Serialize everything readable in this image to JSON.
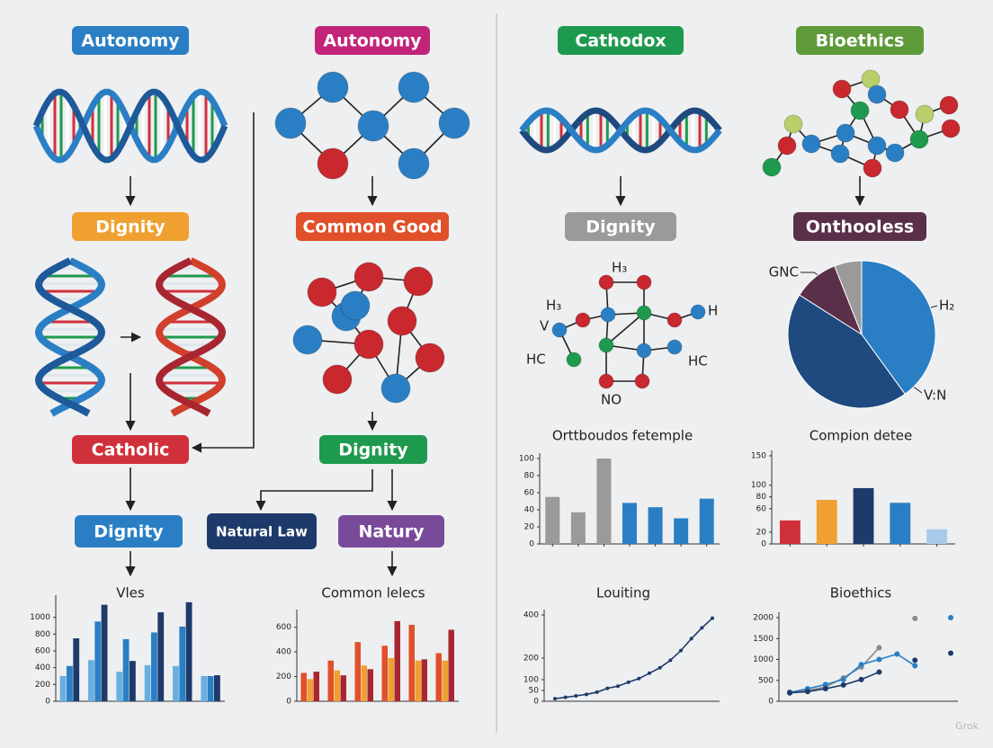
{
  "pills": [
    "Autonomy",
    "Autonomy",
    "Cathodox",
    "Bioethics",
    "Dignity",
    "Common Good",
    "Dignity",
    "Onthooless",
    "Catholic",
    "Dignity",
    "Dignity",
    "Natural Law",
    "Natury"
  ],
  "molecule_labels": [
    "H₃",
    "H₃",
    "V",
    "H",
    "HC",
    "HC",
    "NO"
  ],
  "watermark": "Grok",
  "chart_data": [
    {
      "type": "bar",
      "title": "Orttboudos fetemple",
      "categories": [
        null,
        null,
        null,
        null,
        null,
        null,
        null
      ],
      "values": [
        55,
        37,
        100,
        48,
        43,
        30,
        53
      ],
      "colors": [
        "#9a9a9a",
        "#9a9a9a",
        "#9a9a9a",
        "#2a7fc4",
        "#2a7fc4",
        "#2a7fc4",
        "#2a7fc4"
      ],
      "ylim": [
        0,
        100
      ],
      "yticks": [
        0,
        20,
        40,
        60,
        80,
        100
      ]
    },
    {
      "type": "bar",
      "title": "Compion detee",
      "categories": [
        null,
        null,
        null,
        null,
        null
      ],
      "values": [
        40,
        75,
        95,
        70,
        25
      ],
      "colors": [
        "#d0303a",
        "#f0a030",
        "#1e3a6a",
        "#2a7fc4",
        "#a9c9ea"
      ],
      "ylim": [
        0,
        150
      ],
      "yticks": [
        0,
        20,
        60,
        80,
        100,
        150
      ]
    },
    {
      "type": "grouped",
      "title": "Vles",
      "categories": [
        null,
        null,
        null,
        null,
        null,
        null
      ],
      "series": [
        {
          "color": "#6aaee0",
          "values": [
            300,
            490,
            350,
            430,
            420,
            300
          ]
        },
        {
          "color": "#2a7fc4",
          "values": [
            420,
            950,
            740,
            820,
            890,
            300
          ]
        },
        {
          "color": "#1e3a6a",
          "values": [
            750,
            1150,
            480,
            1060,
            1180,
            310
          ]
        }
      ],
      "ylim": [
        0,
        1200
      ],
      "yticks": [
        0,
        200,
        400,
        600,
        800,
        1000
      ]
    },
    {
      "type": "grouped",
      "title": "Common lelecs",
      "categories": [
        null,
        null,
        null,
        null,
        null,
        null
      ],
      "series": [
        {
          "color": "#e0502a",
          "values": [
            230,
            330,
            480,
            450,
            620,
            390
          ]
        },
        {
          "color": "#f0a030",
          "values": [
            180,
            250,
            290,
            350,
            330,
            330
          ]
        },
        {
          "color": "#a82630",
          "values": [
            240,
            210,
            260,
            650,
            340,
            580
          ]
        }
      ],
      "ylim": [
        0,
        700
      ],
      "yticks": [
        0,
        200,
        400,
        600
      ]
    },
    {
      "type": "line",
      "title": "Louiting",
      "categories": [
        null,
        null,
        null,
        null,
        null,
        null,
        null,
        null,
        null,
        null,
        null,
        null,
        null,
        null,
        null,
        null
      ],
      "series": [
        {
          "color": "#1e3a6a",
          "values": [
            12,
            18,
            25,
            32,
            42,
            60,
            70,
            88,
            105,
            130,
            155,
            190,
            235,
            290,
            340,
            385
          ]
        }
      ],
      "ylim": [
        0,
        400
      ],
      "yticks": [
        0,
        50,
        100,
        200,
        400
      ]
    },
    {
      "type": "line",
      "title": "Bioethics",
      "categories": [
        null,
        null,
        null,
        null,
        null,
        null,
        null,
        null,
        null,
        null
      ],
      "series": [
        {
          "color": "#8a8a8a",
          "values": [
            220,
            260,
            340,
            560,
            820,
            1280,
            null,
            1980,
            null,
            null
          ]
        },
        {
          "color": "#2a7fc4",
          "values": [
            210,
            300,
            400,
            520,
            880,
            1000,
            1130,
            850,
            null,
            2000
          ]
        },
        {
          "color": "#1e3a6a",
          "values": [
            200,
            230,
            300,
            390,
            520,
            700,
            null,
            980,
            null,
            1150
          ]
        }
      ],
      "ylim": [
        0,
        2000
      ],
      "yticks": [
        0,
        500,
        1000,
        1500,
        2000
      ]
    },
    {
      "type": "pie",
      "categories": [
        "H₂",
        "V:N",
        "GNC",
        null
      ],
      "values": [
        40,
        44,
        10,
        6
      ],
      "colors": [
        "#2a7fc4",
        "#1e4a80",
        "#5a2f4a",
        "#9a9a9a"
      ]
    }
  ]
}
